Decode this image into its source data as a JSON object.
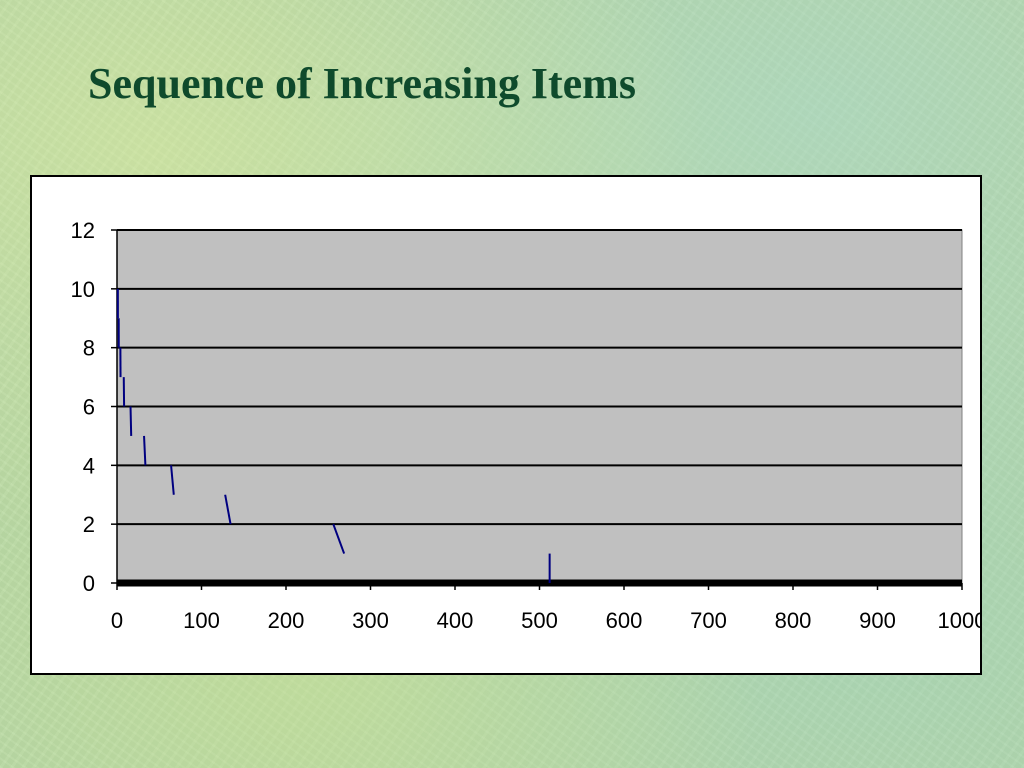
{
  "slide": {
    "title": "Sequence of Increasing Items"
  },
  "colors": {
    "title": "#0f4a2c",
    "plot_background": "#c0c0c0",
    "gridline": "#000000",
    "series": "#000080",
    "chart_background": "#ffffff"
  },
  "chart_data": {
    "type": "scatter",
    "title": "",
    "xlabel": "",
    "ylabel": "",
    "xlim": [
      0,
      1000
    ],
    "ylim": [
      0,
      12
    ],
    "x_ticks": [
      0,
      100,
      200,
      300,
      400,
      500,
      600,
      700,
      800,
      900,
      1000
    ],
    "x_tick_labels": [
      "0",
      "100",
      "200",
      "300",
      "400",
      "500",
      "600",
      "700",
      "800",
      "900",
      "1000"
    ],
    "y_ticks": [
      0,
      2,
      4,
      6,
      8,
      10,
      12
    ],
    "y_tick_labels": [
      "0",
      "2",
      "4",
      "6",
      "8",
      "10",
      "12"
    ],
    "grid": "horizontal",
    "legend": "none",
    "series": [
      {
        "marker": "dash",
        "points": [
          {
            "x": 1,
            "y": 10
          },
          {
            "x": 2,
            "y": 9
          },
          {
            "x": 4,
            "y": 8
          },
          {
            "x": 8,
            "y": 7
          },
          {
            "x": 16,
            "y": 6
          },
          {
            "x": 32,
            "y": 5
          },
          {
            "x": 64,
            "y": 4
          },
          {
            "x": 128,
            "y": 3
          },
          {
            "x": 256,
            "y": 2
          },
          {
            "x": 512,
            "y": 1
          }
        ]
      }
    ]
  }
}
